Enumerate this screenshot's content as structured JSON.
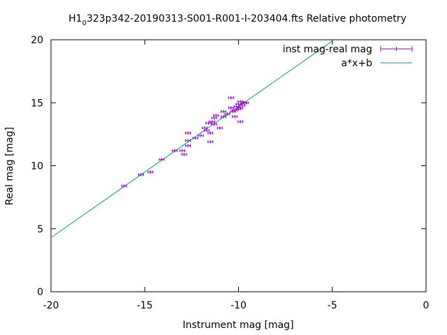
{
  "chart_data": {
    "type": "scatter",
    "title": {
      "prefix": "H1",
      "subscript": "0",
      "suffix": "323p342-20190313-S001-R001-I-203404.fts Relative photometry"
    },
    "xlabel": "Instrument mag [mag]",
    "ylabel": "Real mag [mag]",
    "xlim": [
      -20,
      0
    ],
    "ylim": [
      0,
      20
    ],
    "xticks": [
      -20,
      -15,
      -10,
      -5,
      0
    ],
    "yticks": [
      0,
      5,
      10,
      15,
      20
    ],
    "xtick_labels": [
      "-20",
      "-15",
      "-10",
      "-5",
      "0"
    ],
    "ytick_labels": [
      "0",
      "5",
      "10",
      "15",
      "20"
    ],
    "grid": false,
    "legend_position": "top-right",
    "series": [
      {
        "name": "inst mag-real mag",
        "kind": "errorbar-points",
        "color": "#9400d3",
        "points": [
          {
            "x": -16.1,
            "y": 8.4
          },
          {
            "x": -15.2,
            "y": 9.3
          },
          {
            "x": -14.7,
            "y": 9.5
          },
          {
            "x": -14.1,
            "y": 10.5
          },
          {
            "x": -13.4,
            "y": 11.2
          },
          {
            "x": -13.0,
            "y": 11.2
          },
          {
            "x": -12.9,
            "y": 10.9
          },
          {
            "x": -12.7,
            "y": 11.6
          },
          {
            "x": -12.7,
            "y": 12.0
          },
          {
            "x": -12.7,
            "y": 12.6
          },
          {
            "x": -12.3,
            "y": 12.2
          },
          {
            "x": -12.0,
            "y": 12.4
          },
          {
            "x": -11.8,
            "y": 13.0
          },
          {
            "x": -11.7,
            "y": 12.8
          },
          {
            "x": -11.6,
            "y": 13.4
          },
          {
            "x": -11.5,
            "y": 12.6
          },
          {
            "x": -11.5,
            "y": 11.9
          },
          {
            "x": -11.4,
            "y": 13.5
          },
          {
            "x": -11.3,
            "y": 13.8
          },
          {
            "x": -11.3,
            "y": 13.3
          },
          {
            "x": -11.2,
            "y": 14.0
          },
          {
            "x": -11.0,
            "y": 13.0
          },
          {
            "x": -10.8,
            "y": 13.9
          },
          {
            "x": -10.8,
            "y": 14.3
          },
          {
            "x": -10.6,
            "y": 14.1
          },
          {
            "x": -10.4,
            "y": 14.6
          },
          {
            "x": -10.4,
            "y": 15.4
          },
          {
            "x": -10.3,
            "y": 14.3
          },
          {
            "x": -10.2,
            "y": 14.4
          },
          {
            "x": -10.2,
            "y": 13.9
          },
          {
            "x": -10.1,
            "y": 14.7
          },
          {
            "x": -10.0,
            "y": 14.5
          },
          {
            "x": -10.0,
            "y": 14.9
          },
          {
            "x": -9.9,
            "y": 14.6
          },
          {
            "x": -9.9,
            "y": 15.1
          },
          {
            "x": -9.9,
            "y": 13.5
          },
          {
            "x": -9.8,
            "y": 14.8
          },
          {
            "x": -9.7,
            "y": 15.0
          },
          {
            "x": -9.6,
            "y": 15.0
          }
        ]
      },
      {
        "name": "a*x+b",
        "kind": "line",
        "color": "#009e73",
        "x": [
          -20,
          -5
        ],
        "y": [
          4.3,
          19.9
        ]
      }
    ]
  }
}
